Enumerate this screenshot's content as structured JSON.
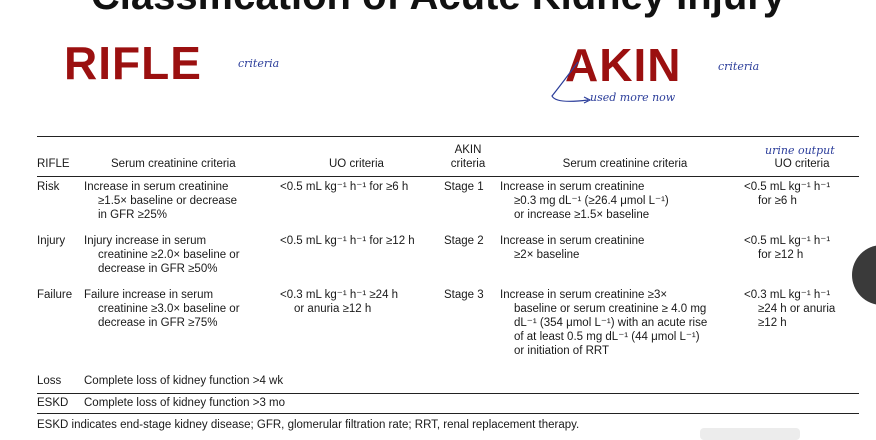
{
  "slide": {
    "title": "Classification of Acute Kidney Injury",
    "rifle_heading": "RIFLE",
    "rifle_note": "criteria",
    "akin_heading": "AKIN",
    "akin_note": "criteria",
    "akin_used_note": "used more now",
    "uo_note": "urine output"
  },
  "table": {
    "headers": {
      "rifle": "RIFLE",
      "serum_rifle": "Serum creatinine criteria",
      "uo_rifle": "UO criteria",
      "akin_1": "AKIN",
      "akin_2": "criteria",
      "serum_akin": "Serum creatinine criteria",
      "uo_akin": "UO criteria"
    },
    "rows": [
      {
        "rifle": "Risk",
        "serum": [
          "Increase in serum creatinine",
          "≥1.5× baseline or decrease",
          "in GFR ≥25%"
        ],
        "uo": [
          "<0.5 mL kg⁻¹ h⁻¹ for ≥6 h"
        ],
        "akin": "Stage 1",
        "akin_serum": [
          "Increase in serum creatinine",
          "≥0.3 mg dL⁻¹ (≥26.4 μmol L⁻¹)",
          "or increase ≥1.5× baseline"
        ],
        "akin_uo": [
          "<0.5 mL kg⁻¹ h⁻¹",
          "for ≥6 h"
        ]
      },
      {
        "rifle": "Injury",
        "serum": [
          "Injury increase in serum",
          "creatinine ≥2.0× baseline or",
          "decrease in GFR ≥50%"
        ],
        "uo": [
          "<0.5 mL kg⁻¹ h⁻¹ for ≥12 h"
        ],
        "akin": "Stage 2",
        "akin_serum": [
          "Increase in serum creatinine",
          "≥2× baseline"
        ],
        "akin_uo": [
          "<0.5 mL kg⁻¹ h⁻¹",
          "for ≥12 h"
        ]
      },
      {
        "rifle": "Failure",
        "serum": [
          "Failure increase in serum",
          "creatinine ≥3.0× baseline or",
          "decrease in GFR ≥75%"
        ],
        "uo": [
          "<0.3 mL kg⁻¹ h⁻¹ ≥24 h",
          "or anuria ≥12 h"
        ],
        "akin": "Stage 3",
        "akin_serum": [
          "Increase in serum creatinine ≥3×",
          "baseline or serum creatinine ≥ 4.0 mg",
          "dL⁻¹ (354 μmol L⁻¹) with an acute rise",
          "of at least 0.5 mg dL⁻¹ (44 μmol L⁻¹)",
          "or initiation of RRT"
        ],
        "akin_uo": [
          "<0.3 mL kg⁻¹ h⁻¹",
          "≥24 h or anuria",
          "≥12 h"
        ]
      },
      {
        "rifle": "Loss",
        "serum": [
          "Complete loss of kidney function >4 wk"
        ]
      },
      {
        "rifle": "ESKD",
        "serum": [
          "Complete loss of kidney function >3 mo"
        ]
      }
    ],
    "footnote": "ESKD indicates end-stage kidney disease; GFR, glomerular filtration rate; RRT, renal replacement therapy."
  }
}
